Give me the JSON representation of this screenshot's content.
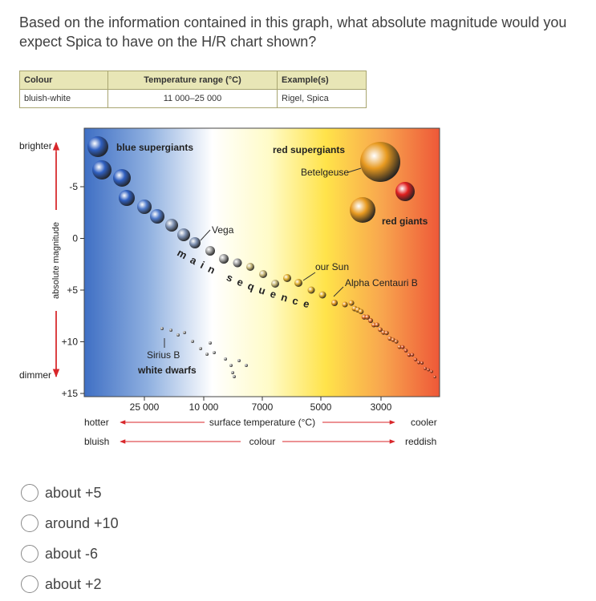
{
  "question": "Based on the information contained in this graph, what absolute magnitude would you expect Spica to have on the H/R chart shown?",
  "table": {
    "header": [
      "Colour",
      "Temperature range (°C)",
      "Example(s)"
    ],
    "rows": [
      [
        "bluish-white",
        "11 000–25 000",
        "Rigel, Spica"
      ]
    ]
  },
  "diagram": {
    "y_axis_title": "absolute magnitude",
    "y_top": "brighter",
    "y_bottom": "dimmer",
    "y_ticks": [
      "-5",
      "0",
      "+5",
      "+10",
      "+15"
    ],
    "x_ticks": [
      "25 000",
      "10 000",
      "7000",
      "5000",
      "3000"
    ],
    "x_axis_title": "surface temperature (°C)",
    "colour_title": "colour",
    "hot": "hotter",
    "cool": "cooler",
    "blue": "bluish",
    "red": "reddish",
    "labels": {
      "blue_supergiants": "blue supergiants",
      "red_supergiants": "red supergiants",
      "betelgeuse": "Betelgeuse",
      "vega": "Vega",
      "main_sequence": "main sequence",
      "sun": "our Sun",
      "alpha_centauri": "Alpha Centauri B",
      "red_giants": "red giants",
      "sirius": "Sirius B",
      "white_dwarfs": "white dwarfs"
    }
  },
  "options": [
    "about +5",
    "around +10",
    "about -6",
    "about +2"
  ]
}
